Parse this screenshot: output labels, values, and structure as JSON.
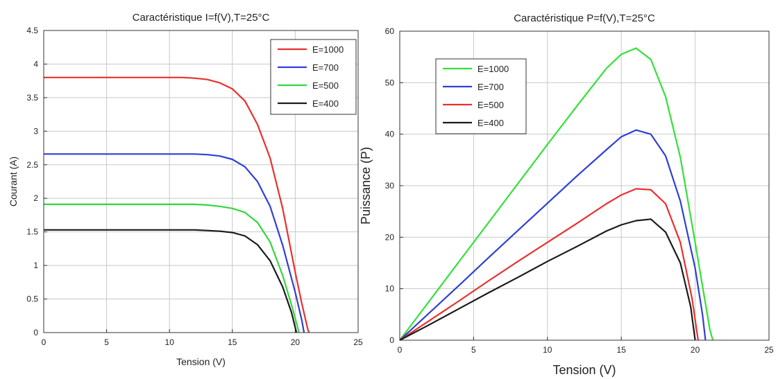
{
  "chart_data": [
    {
      "type": "line",
      "title": "Caractéristique I=f(V),T=25°C",
      "xlabel": "Tension (V)",
      "ylabel": "Courant (A)",
      "xlim": [
        0,
        25
      ],
      "ylim": [
        0,
        4.5
      ],
      "xticks": [
        "0",
        "5",
        "10",
        "15",
        "20",
        "25"
      ],
      "yticks": [
        "0",
        "0.5",
        "1",
        "1.5",
        "2",
        "2.5",
        "3",
        "3.5",
        "4",
        "4.5"
      ],
      "grid": true,
      "legend_position": "top-right",
      "series": [
        {
          "name": "E=1000",
          "color": "#e8302d",
          "x": [
            0,
            5,
            10,
            11,
            12,
            13,
            14,
            15,
            16,
            17,
            18,
            19,
            20,
            20.5,
            21,
            21.1
          ],
          "y": [
            3.8,
            3.8,
            3.8,
            3.8,
            3.79,
            3.77,
            3.72,
            3.63,
            3.45,
            3.1,
            2.6,
            1.85,
            0.9,
            0.45,
            0.05,
            0
          ]
        },
        {
          "name": "E=700",
          "color": "#2f3fd6",
          "x": [
            0,
            5,
            10,
            12,
            13,
            14,
            15,
            16,
            17,
            18,
            19,
            20,
            20.5,
            20.7
          ],
          "y": [
            2.66,
            2.66,
            2.66,
            2.66,
            2.65,
            2.63,
            2.58,
            2.47,
            2.25,
            1.88,
            1.3,
            0.6,
            0.2,
            0
          ]
        },
        {
          "name": "E=500",
          "color": "#33d63f",
          "x": [
            0,
            5,
            10,
            12,
            13,
            14,
            15,
            16,
            17,
            18,
            19,
            19.8,
            20.3
          ],
          "y": [
            1.91,
            1.91,
            1.91,
            1.91,
            1.9,
            1.88,
            1.85,
            1.79,
            1.64,
            1.35,
            0.85,
            0.35,
            0
          ]
        },
        {
          "name": "E=400",
          "color": "#1a1a1a",
          "x": [
            0,
            5,
            10,
            12,
            13,
            14,
            15,
            16,
            17,
            18,
            19,
            19.7,
            20.1
          ],
          "y": [
            1.53,
            1.53,
            1.53,
            1.53,
            1.52,
            1.51,
            1.49,
            1.44,
            1.31,
            1.07,
            0.68,
            0.3,
            0
          ]
        }
      ]
    },
    {
      "type": "line",
      "title": "Caractéristique P=f(V),T=25°C",
      "xlabel": "Tension (V)",
      "ylabel": "Puissance (P)",
      "xlim": [
        0,
        25
      ],
      "ylim": [
        0,
        60
      ],
      "xticks": [
        "0",
        "5",
        "10",
        "15",
        "20",
        "25"
      ],
      "yticks": [
        "0",
        "10",
        "20",
        "30",
        "40",
        "50",
        "60"
      ],
      "grid": true,
      "legend_position": "top-left",
      "series": [
        {
          "name": "E=1000",
          "color": "#33e038",
          "x": [
            0,
            2,
            4,
            6,
            8,
            10,
            12,
            14,
            15,
            16,
            17,
            18,
            19,
            20,
            20.5,
            21,
            21.2
          ],
          "y": [
            0,
            7.6,
            15.2,
            22.8,
            30.4,
            38,
            45.5,
            52.8,
            55.5,
            56.7,
            54.5,
            47.3,
            35.5,
            19,
            10.5,
            2,
            0
          ]
        },
        {
          "name": "E=700",
          "color": "#2f3fd6",
          "x": [
            0,
            2,
            4,
            6,
            8,
            10,
            12,
            14,
            15,
            16,
            17,
            18,
            19,
            20,
            20.5,
            20.7
          ],
          "y": [
            0,
            5.3,
            10.6,
            16,
            21.3,
            26.6,
            31.9,
            37,
            39.5,
            40.8,
            40,
            35.8,
            27,
            14,
            5,
            0
          ]
        },
        {
          "name": "E=500",
          "color": "#e8302d",
          "x": [
            0,
            2,
            4,
            6,
            8,
            10,
            12,
            14,
            15,
            16,
            17,
            18,
            19,
            19.8,
            20.2
          ],
          "y": [
            0,
            3.8,
            7.6,
            11.5,
            15.3,
            19,
            22.7,
            26.5,
            28.2,
            29.4,
            29.2,
            26.5,
            19,
            8,
            0
          ]
        },
        {
          "name": "E=400",
          "color": "#1a1a1a",
          "x": [
            0,
            2,
            4,
            6,
            8,
            10,
            12,
            14,
            15,
            16,
            17,
            18,
            19,
            19.7,
            20
          ],
          "y": [
            0,
            3,
            6.1,
            9.2,
            12.2,
            15.3,
            18.2,
            21.2,
            22.4,
            23.2,
            23.5,
            21,
            15,
            6.5,
            0
          ]
        }
      ]
    }
  ]
}
